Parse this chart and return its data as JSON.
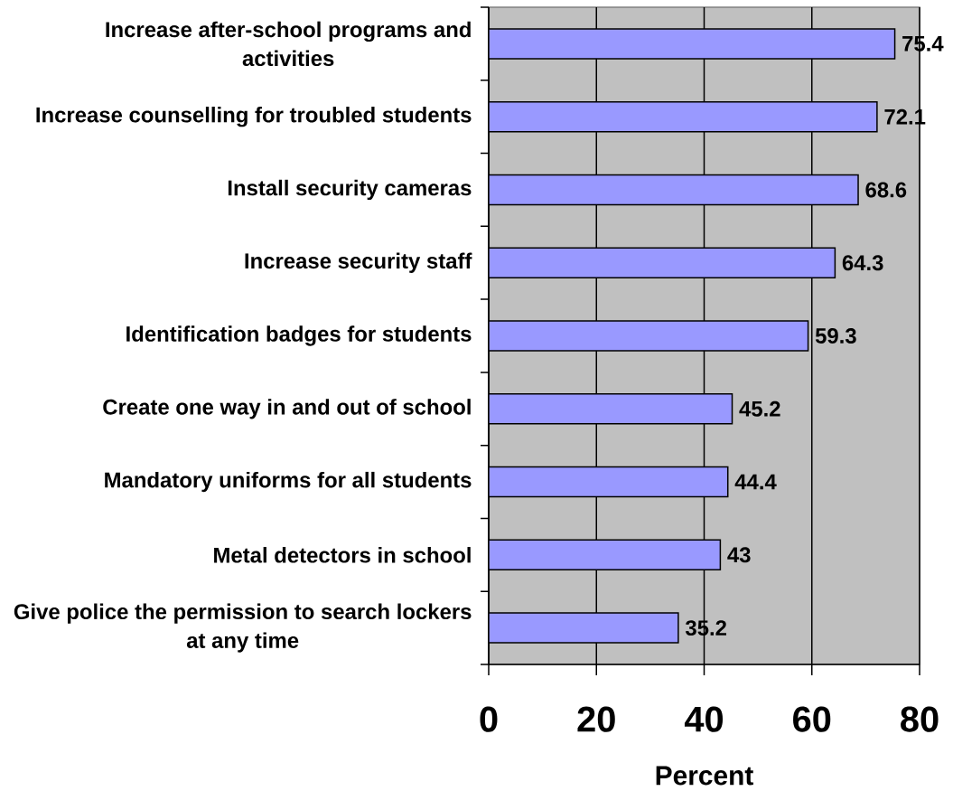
{
  "chart_data": {
    "type": "bar",
    "orientation": "horizontal",
    "categories": [
      "Increase after-school programs and activities",
      "Increase counselling for troubled students",
      "Install security cameras",
      "Increase security staff",
      "Identification badges for students",
      "Create one way in and out of school",
      "Mandatory uniforms for all students",
      "Metal detectors in school",
      "Give police the permission to search lockers at any time"
    ],
    "values": [
      75.4,
      72.1,
      68.6,
      64.3,
      59.3,
      45.2,
      44.4,
      43,
      35.2
    ],
    "color": "#9999ff",
    "xlim": [
      0,
      80
    ],
    "xticks": [
      0,
      20,
      40,
      60,
      80
    ],
    "xlabel": "Percent",
    "grid": "x",
    "data_labels": true
  }
}
